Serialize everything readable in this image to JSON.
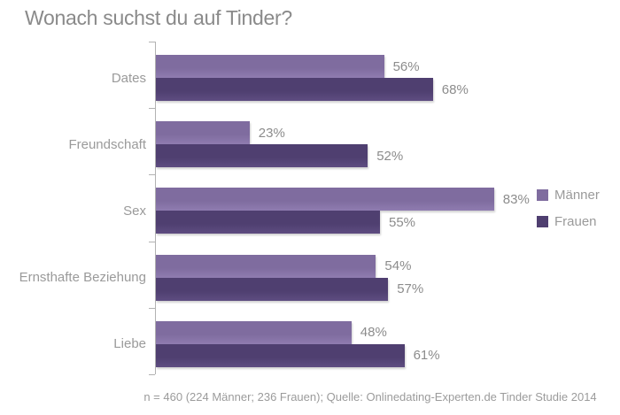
{
  "chart_data": {
    "type": "bar",
    "orientation": "horizontal",
    "title": "Wonach suchst du auf Tinder?",
    "categories": [
      "Dates",
      "Freundschaft",
      "Sex",
      "Ernsthafte Beziehung",
      "Liebe"
    ],
    "series": [
      {
        "name": "Männer",
        "key": "maenner",
        "color": "#7f6c9f",
        "color_light": "#8f7cb0",
        "values": [
          56,
          23,
          83,
          54,
          48
        ]
      },
      {
        "name": "Frauen",
        "key": "frauen",
        "color": "#4f3f70",
        "color_light": "#5e4d81",
        "values": [
          68,
          52,
          55,
          57,
          61
        ]
      }
    ],
    "value_suffix": "%",
    "xlim": [
      0,
      100
    ],
    "gridlines": false,
    "legend_position": "right",
    "title_color": "#8a8a8a",
    "label_color": "#9a9a9a",
    "value_label_color": "#8c8c8c",
    "axis_color": "#b2b2b2",
    "background_color": "#ffffff",
    "footnote": "n = 460 (224 Männer; 236 Frauen); Quelle: Onlinedating-Experten.de Tinder Studie 2014"
  }
}
